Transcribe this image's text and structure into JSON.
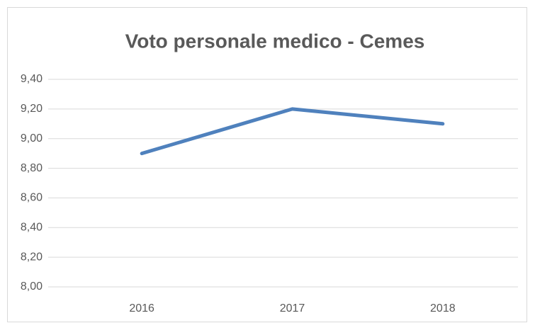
{
  "chart_data": {
    "type": "line",
    "title": "Voto personale medico - Cemes",
    "categories": [
      "2016",
      "2017",
      "2018"
    ],
    "values": [
      8.9,
      9.2,
      9.1
    ],
    "color": "#4f81bd",
    "ylim": [
      8,
      9.4
    ],
    "yticks": [
      {
        "value": 8,
        "label": "8,00"
      },
      {
        "value": 8.2,
        "label": "8,20"
      },
      {
        "value": 8.4,
        "label": "8,40"
      },
      {
        "value": 8.6,
        "label": "8,60"
      },
      {
        "value": 8.8,
        "label": "8,80"
      },
      {
        "value": 9,
        "label": "9,00"
      },
      {
        "value": 9.2,
        "label": "9,20"
      },
      {
        "value": 9.4,
        "label": "9,40"
      }
    ],
    "grid": true
  }
}
